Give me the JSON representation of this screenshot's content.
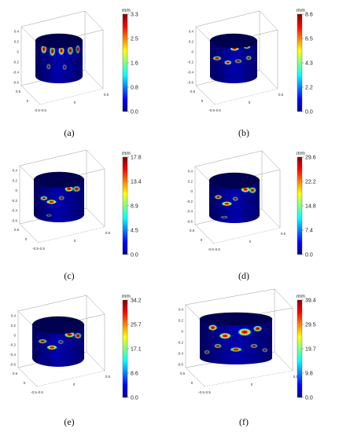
{
  "colormap": [
    "#00008f",
    "#0000ff",
    "#0080ff",
    "#00ffff",
    "#80ff80",
    "#ffff00",
    "#ff8000",
    "#ff0000",
    "#800000"
  ],
  "unit": "mm",
  "panels": [
    {
      "caption": "(a)",
      "colorbar_ticks": [
        "3.3",
        "2.5",
        "1.6",
        "0.8",
        "0.0"
      ]
    },
    {
      "caption": "(b)",
      "colorbar_ticks": [
        "8.6",
        "6.5",
        "4.3",
        "2.2",
        "0.0"
      ]
    },
    {
      "caption": "(c)",
      "colorbar_ticks": [
        "17.8",
        "13.4",
        "8.9",
        "4.5",
        "0.0"
      ]
    },
    {
      "caption": "(d)",
      "colorbar_ticks": [
        "29.6",
        "22.2",
        "14.8",
        "7.4",
        "0.0"
      ]
    },
    {
      "caption": "(e)",
      "colorbar_ticks": [
        "34.2",
        "25.7",
        "17.1",
        "8.6",
        "0.0"
      ]
    },
    {
      "caption": "(f)",
      "colorbar_ticks": [
        "39.4",
        "29.5",
        "19.7",
        "9.8",
        "0.0"
      ]
    }
  ],
  "z_ticks": [
    "0.4",
    "0.2",
    "0",
    "-0.2",
    "-0.4",
    "-0.6"
  ],
  "x_ticks": [
    "0.5",
    "0",
    "-0.5"
  ],
  "y_ticks": [
    "0.5",
    "0",
    "-0.5"
  ]
}
